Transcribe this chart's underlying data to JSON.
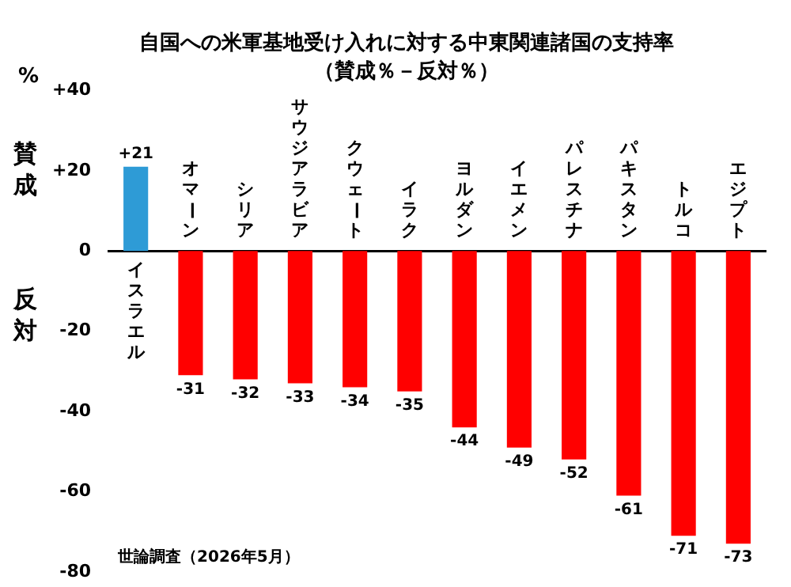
{
  "chart_data": {
    "type": "bar",
    "title": "自国への米軍基地受け入れに対する中東関連諸国の支持率",
    "subtitle": "（賛成％－反対％）",
    "ylabel": "%",
    "categories": [
      "イスラエル",
      "オマーン",
      "シリア",
      "サウジアラビア",
      "クウェート",
      "イラク",
      "ヨルダン",
      "イエメン",
      "パレスチナ",
      "パキスタン",
      "トルコ",
      "エジプト"
    ],
    "values": [
      21,
      -31,
      -32,
      -33,
      -34,
      -35,
      -44,
      -49,
      -52,
      -61,
      -71,
      -73
    ],
    "colors": [
      "#2e9bd6",
      "#ff0000",
      "#ff0000",
      "#ff0000",
      "#ff0000",
      "#ff0000",
      "#ff0000",
      "#ff0000",
      "#ff0000",
      "#ff0000",
      "#ff0000",
      "#ff0000"
    ],
    "value_labels": [
      "+21",
      "-31",
      "-32",
      "-33",
      "-34",
      "-35",
      "-44",
      "-49",
      "-52",
      "-61",
      "-71",
      "-73"
    ],
    "ylim": [
      -80,
      40
    ],
    "yticks": [
      {
        "value": 40,
        "label": "+40"
      },
      {
        "value": 20,
        "label": "+20"
      },
      0,
      -20,
      -40,
      -60,
      -80
    ],
    "grid": false,
    "legend": false,
    "annotations": [
      "賛成",
      "反対",
      "世論調査（2026年5月）"
    ]
  }
}
